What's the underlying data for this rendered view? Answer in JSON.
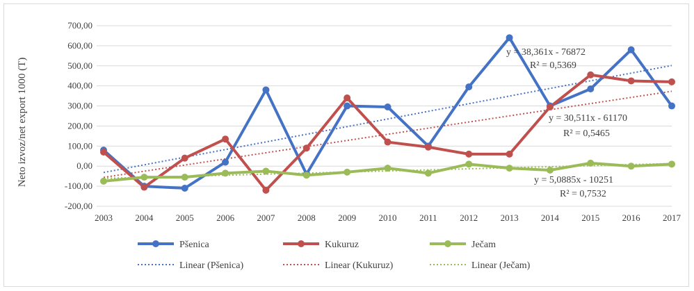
{
  "chart_data": {
    "type": "line",
    "title": "",
    "xlabel": "",
    "ylabel": "Neto izvoz/net export 1000 (T)",
    "categories": [
      "2003",
      "2004",
      "2005",
      "2006",
      "2007",
      "2008",
      "2009",
      "2010",
      "2011",
      "2012",
      "2013",
      "2014",
      "2015",
      "2016",
      "2017"
    ],
    "y_ticks": [
      "700,00",
      "600,00",
      "500,00",
      "400,00",
      "300,00",
      "200,00",
      "100,00",
      "0,00",
      "-100,00",
      "-200,00"
    ],
    "ylim": [
      -200,
      700
    ],
    "grid": true,
    "legend_position": "bottom",
    "series": [
      {
        "name": "Pšenica",
        "color": "#4472c4",
        "values": [
          80,
          -100,
          -110,
          20,
          380,
          -40,
          300,
          295,
          100,
          395,
          640,
          300,
          385,
          580,
          300
        ]
      },
      {
        "name": "Kukuruz",
        "color": "#c0504d",
        "values": [
          70,
          -105,
          40,
          135,
          -120,
          90,
          340,
          120,
          95,
          60,
          60,
          295,
          455,
          425,
          420
        ]
      },
      {
        "name": "Ječam",
        "color": "#9bbb59",
        "values": [
          -75,
          -55,
          -55,
          -35,
          -25,
          -45,
          -30,
          -10,
          -35,
          10,
          -10,
          -20,
          15,
          0,
          10
        ]
      }
    ],
    "trendlines": [
      {
        "name": "Linear (Pšenica)",
        "color": "#4472c4",
        "equation": "y = 38,361x - 76872",
        "r2": "R² = 0,5369"
      },
      {
        "name": "Linear (Kukuruz)",
        "color": "#c0504d",
        "equation": "y = 30,511x - 61170",
        "r2": "R² = 0,5465"
      },
      {
        "name": "Linear (Ječam)",
        "color": "#9bbb59",
        "equation": "y = 5,0885x - 10251",
        "r2": "R² = 0,7532"
      }
    ]
  }
}
